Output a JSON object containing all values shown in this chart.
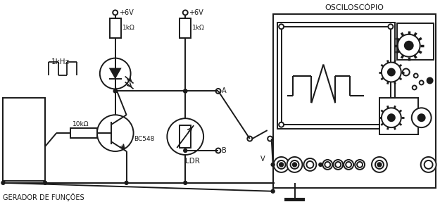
{
  "title": "OSCILOSCÓPIO",
  "label_gerador": "GERADOR DE FUNÇÕES",
  "label_1khz": "1kHz",
  "label_10k": "10kΩ",
  "label_1k_left": "1kΩ",
  "label_1k_right": "1kΩ",
  "label_6v_left": "+6V",
  "label_6v_right": "+6V",
  "label_bc548": "BC548",
  "label_ldr": "LDR",
  "label_A": "A",
  "label_B": "B",
  "label_V": "V",
  "bg_color": "#ffffff",
  "line_color": "#1a1a1a"
}
